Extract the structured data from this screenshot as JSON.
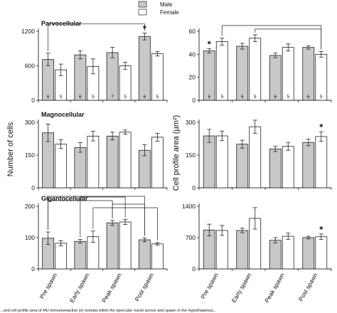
{
  "legend": [
    {
      "label": "Male",
      "color": "#c8c8c8"
    },
    {
      "label": "Female",
      "color": "#ffffff"
    }
  ],
  "ylabel_left": "Number of cells",
  "ylabel_right": "Cell profile area (µm²)",
  "caption": "...and cell profile area of MU immunoreactive (ir) somata within the opercular nuclei across and spawn in the Hypothalamus...",
  "chart_data": [
    {
      "type": "bar",
      "panel": "left-top",
      "title": "Parvocellular",
      "categories": [
        "Pre spawn",
        "Early spawn",
        "Peak spawn",
        "Post spawn"
      ],
      "ylim": [
        0,
        1200
      ],
      "yticks": [
        0,
        600,
        1200
      ],
      "series": [
        {
          "name": "Male",
          "values": [
            710,
            790,
            830,
            1110
          ],
          "errors": [
            110,
            70,
            90,
            60
          ],
          "n": [
            "6",
            "6",
            "7",
            "6"
          ]
        },
        {
          "name": "Female",
          "values": [
            530,
            590,
            600,
            810
          ],
          "errors": [
            100,
            130,
            60,
            40
          ],
          "n": [
            "5",
            "5",
            "5",
            "5"
          ]
        }
      ],
      "stars": [
        {
          "category": 3,
          "series": 0,
          "label": "*"
        }
      ],
      "brackets": [
        {
          "from": [
            0,
            0
          ],
          "to": [
            3,
            0
          ],
          "level": 1
        }
      ]
    },
    {
      "type": "bar",
      "panel": "right-top",
      "title": "",
      "categories": [
        "Pre spawn",
        "Early spawn",
        "Peak spawn",
        "Post spawn"
      ],
      "ylim": [
        0,
        60
      ],
      "yticks": [
        0,
        20,
        40,
        60
      ],
      "series": [
        {
          "name": "Male",
          "values": [
            43,
            47,
            39,
            46
          ],
          "errors": [
            2,
            2.5,
            2,
            1.5
          ],
          "n": [
            "6",
            "6",
            "6",
            "6"
          ]
        },
        {
          "name": "Female",
          "values": [
            51,
            54,
            46,
            40
          ],
          "errors": [
            3,
            3,
            3,
            2.5
          ],
          "n": [
            "5",
            "5",
            "5",
            "5"
          ]
        }
      ],
      "stars": [
        {
          "category": 0,
          "series": 0,
          "label": "*"
        }
      ],
      "brackets": [
        {
          "from": [
            0,
            1
          ],
          "to": [
            3,
            1
          ],
          "level": 1
        },
        {
          "from": [
            1,
            1
          ],
          "to": [
            3,
            1
          ],
          "level": 0
        }
      ]
    },
    {
      "type": "bar",
      "panel": "left-middle",
      "title": "Magnocellular",
      "categories": [
        "Pre spawn",
        "Early spawn",
        "Peak spawn",
        "Post spawn"
      ],
      "ylim": [
        0,
        300
      ],
      "yticks": [
        0,
        150,
        300
      ],
      "series": [
        {
          "name": "Male",
          "values": [
            252,
            185,
            237,
            172
          ],
          "errors": [
            40,
            22,
            18,
            25
          ],
          "n": []
        },
        {
          "name": "Female",
          "values": [
            200,
            237,
            255,
            232
          ],
          "errors": [
            20,
            22,
            10,
            18
          ],
          "n": []
        }
      ],
      "stars": [],
      "brackets": []
    },
    {
      "type": "bar",
      "panel": "right-middle",
      "title": "",
      "categories": [
        "Pre spawn",
        "Early spawn",
        "Peak spawn",
        "Post spawn"
      ],
      "ylim": [
        0,
        300
      ],
      "yticks": [
        0,
        150,
        300
      ],
      "series": [
        {
          "name": "Male",
          "values": [
            238,
            200,
            178,
            208
          ],
          "errors": [
            30,
            18,
            12,
            15
          ],
          "n": []
        },
        {
          "name": "Female",
          "values": [
            238,
            280,
            190,
            235
          ],
          "errors": [
            22,
            30,
            18,
            22
          ],
          "n": []
        }
      ],
      "stars": [
        {
          "category": 3,
          "series": 1,
          "label": "*"
        }
      ],
      "brackets": []
    },
    {
      "type": "bar",
      "panel": "left-bottom",
      "title": "Gigantocellular",
      "categories": [
        "Pre spawn",
        "Early spawn",
        "Peak spawn",
        "Post spawn"
      ],
      "ylim": [
        0,
        200
      ],
      "yticks": [
        0,
        100,
        200
      ],
      "series": [
        {
          "name": "Male",
          "values": [
            98,
            88,
            147,
            93
          ],
          "errors": [
            20,
            6,
            8,
            6
          ],
          "n": []
        },
        {
          "name": "Female",
          "values": [
            82,
            103,
            150,
            80
          ],
          "errors": [
            8,
            18,
            8,
            4
          ],
          "n": []
        }
      ],
      "stars": [],
      "brackets": [
        {
          "from": [
            0,
            0
          ],
          "to": [
            3,
            0
          ],
          "level": 4
        },
        {
          "from": [
            1,
            0
          ],
          "to": [
            2,
            1
          ],
          "level": 3
        },
        {
          "from": [
            0,
            0
          ],
          "to": [
            2,
            0
          ],
          "level": 2
        },
        {
          "from": [
            2,
            0
          ],
          "to": [
            3,
            0
          ],
          "level": 1
        },
        {
          "from": [
            1,
            1
          ],
          "to": [
            3,
            1
          ],
          "level": 0
        }
      ]
    },
    {
      "type": "bar",
      "panel": "right-bottom",
      "title": "",
      "categories": [
        "Pre spawn",
        "Early spawn",
        "Peak spawn",
        "Post spawn"
      ],
      "ylim": [
        0,
        1400
      ],
      "yticks": [
        0,
        700,
        1400
      ],
      "series": [
        {
          "name": "Male",
          "values": [
            870,
            860,
            640,
            700
          ],
          "errors": [
            130,
            50,
            60,
            30
          ],
          "n": []
        },
        {
          "name": "Female",
          "values": [
            860,
            1130,
            730,
            720
          ],
          "errors": [
            110,
            240,
            70,
            60
          ],
          "n": []
        }
      ],
      "stars": [
        {
          "category": 3,
          "series": 1,
          "label": "*"
        }
      ],
      "brackets": []
    }
  ]
}
